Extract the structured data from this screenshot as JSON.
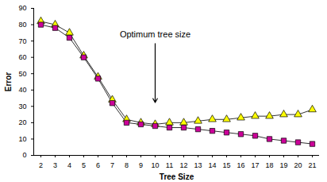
{
  "chart_data": {
    "type": "line",
    "x_label": "Tree Size",
    "y_label": "Error",
    "x": [
      2,
      3,
      4,
      5,
      6,
      7,
      8,
      9,
      10,
      11,
      12,
      13,
      14,
      15,
      16,
      17,
      18,
      19,
      20,
      21
    ],
    "series": [
      {
        "color": "#ffff00",
        "marker": "triangle",
        "values": [
          82,
          80,
          75,
          61,
          48,
          34,
          22,
          20,
          19,
          20,
          20,
          21,
          22,
          22,
          23,
          24,
          24,
          25,
          25,
          28
        ]
      },
      {
        "color": "#cc0099",
        "marker": "square",
        "values": [
          80,
          78,
          72,
          60,
          47,
          32,
          20,
          19,
          18,
          17,
          17,
          16,
          15,
          14,
          13,
          12,
          10,
          9,
          8,
          7
        ]
      }
    ],
    "xlim": [
      1.5,
      21.5
    ],
    "xticks": [
      2,
      3,
      4,
      5,
      6,
      7,
      8,
      9,
      10,
      11,
      12,
      13,
      14,
      15,
      16,
      17,
      18,
      19,
      20,
      21
    ],
    "ylim": [
      0,
      90
    ],
    "yticks": [
      0,
      10,
      20,
      30,
      40,
      50,
      60,
      70,
      80,
      90
    ],
    "grid": false,
    "annotations": [
      {
        "text": "Optimum tree size",
        "x": 10
      }
    ]
  }
}
